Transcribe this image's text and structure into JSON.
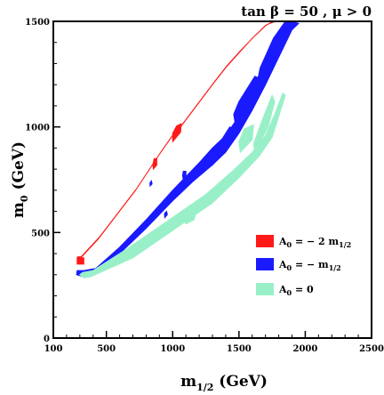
{
  "chart_data": {
    "type": "scatter",
    "title": "tan β = 50 ,  μ > 0",
    "xlabel": "m1/2 (GeV)",
    "ylabel": "m0 (GeV)",
    "xlim": [
      100,
      2500
    ],
    "ylim": [
      0,
      1500
    ],
    "x_ticks": [
      100,
      500,
      1000,
      1500,
      2000,
      2500
    ],
    "y_ticks": [
      0,
      500,
      1000,
      1500
    ],
    "grid": false,
    "legend_position": "right-center",
    "colors": {
      "red": "#ff1a1a",
      "blue": "#1a1aff",
      "green": "#99f0c8"
    },
    "series": [
      {
        "name": "A0 = − 2 m1/2",
        "color": "red",
        "outline": [
          [
            280,
            380
          ],
          [
            300,
            375
          ],
          [
            440,
            470
          ],
          [
            720,
            700
          ],
          [
            900,
            870
          ],
          [
            1000,
            960
          ],
          [
            1060,
            1000
          ],
          [
            1180,
            1100
          ],
          [
            1300,
            1200
          ],
          [
            1400,
            1280
          ],
          [
            1500,
            1350
          ],
          [
            1600,
            1420
          ],
          [
            1700,
            1480
          ],
          [
            1760,
            1500
          ],
          [
            1775,
            1500
          ],
          [
            1710,
            1485
          ],
          [
            1610,
            1425
          ],
          [
            1510,
            1360
          ],
          [
            1410,
            1290
          ],
          [
            1310,
            1210
          ],
          [
            1190,
            1110
          ],
          [
            1070,
            1010
          ],
          [
            1010,
            970
          ],
          [
            910,
            880
          ],
          [
            730,
            710
          ],
          [
            450,
            480
          ],
          [
            310,
            385
          ],
          [
            285,
            385
          ]
        ],
        "blobs": [
          {
            "outline": [
              [
                280,
                350
              ],
              [
                330,
                350
              ],
              [
                330,
                380
              ],
              [
                280,
                380
              ]
            ]
          },
          {
            "outline": [
              [
                1000,
                930
              ],
              [
                1060,
                975
              ],
              [
                1065,
                1015
              ],
              [
                1030,
                1005
              ],
              [
                1000,
                970
              ]
            ]
          },
          {
            "outline": [
              [
                855,
                800
              ],
              [
                880,
                820
              ],
              [
                880,
                850
              ],
              [
                860,
                850
              ],
              [
                850,
                820
              ]
            ]
          }
        ]
      },
      {
        "name": "A0 = − m1/2",
        "color": "blue",
        "outline": [
          [
            275,
            300
          ],
          [
            330,
            290
          ],
          [
            390,
            300
          ],
          [
            600,
            400
          ],
          [
            800,
            520
          ],
          [
            1000,
            650
          ],
          [
            1150,
            740
          ],
          [
            1300,
            820
          ],
          [
            1400,
            880
          ],
          [
            1500,
            970
          ],
          [
            1600,
            1080
          ],
          [
            1700,
            1200
          ],
          [
            1800,
            1330
          ],
          [
            1900,
            1460
          ],
          [
            1950,
            1490
          ],
          [
            1900,
            1500
          ],
          [
            1800,
            1420
          ],
          [
            1750,
            1380
          ],
          [
            1700,
            1300
          ],
          [
            1600,
            1170
          ],
          [
            1500,
            1050
          ],
          [
            1400,
            960
          ],
          [
            1300,
            900
          ],
          [
            1200,
            830
          ],
          [
            1000,
            700
          ],
          [
            800,
            560
          ],
          [
            600,
            430
          ],
          [
            420,
            330
          ],
          [
            330,
            320
          ],
          [
            280,
            320
          ]
        ],
        "blobs": [
          {
            "outline": [
              [
                1300,
                820
              ],
              [
                1440,
                920
              ],
              [
                1470,
                990
              ],
              [
                1430,
                1000
              ],
              [
                1360,
                930
              ],
              [
                1300,
                860
              ]
            ]
          },
          {
            "outline": [
              [
                1470,
                1020
              ],
              [
                1620,
                1170
              ],
              [
                1660,
                1230
              ],
              [
                1620,
                1240
              ],
              [
                1500,
                1120
              ],
              [
                1460,
                1060
              ]
            ]
          },
          {
            "outline": [
              [
                1620,
                1160
              ],
              [
                1800,
                1350
              ],
              [
                1870,
                1420
              ],
              [
                1890,
                1490
              ],
              [
                1920,
                1500
              ],
              [
                1850,
                1500
              ],
              [
                1760,
                1420
              ],
              [
                1660,
                1280
              ]
            ]
          },
          {
            "outline": [
              [
                1080,
                750
              ],
              [
                1100,
                770
              ],
              [
                1100,
                790
              ],
              [
                1080,
                790
              ],
              [
                1075,
                770
              ]
            ]
          },
          {
            "outline": [
              [
                940,
                570
              ],
              [
                960,
                585
              ],
              [
                955,
                600
              ],
              [
                938,
                590
              ]
            ]
          },
          {
            "outline": [
              [
                830,
                720
              ],
              [
                845,
                730
              ],
              [
                840,
                745
              ],
              [
                828,
                735
              ]
            ]
          }
        ]
      },
      {
        "name": "A0 = 0",
        "color": "green",
        "outline": [
          [
            300,
            300
          ],
          [
            330,
            285
          ],
          [
            380,
            290
          ],
          [
            700,
            380
          ],
          [
            1000,
            510
          ],
          [
            1300,
            640
          ],
          [
            1500,
            760
          ],
          [
            1650,
            860
          ],
          [
            1750,
            950
          ],
          [
            1800,
            1050
          ],
          [
            1850,
            1150
          ],
          [
            1830,
            1160
          ],
          [
            1770,
            1060
          ],
          [
            1700,
            960
          ],
          [
            1600,
            880
          ],
          [
            1450,
            790
          ],
          [
            1250,
            680
          ],
          [
            950,
            550
          ],
          [
            650,
            420
          ],
          [
            400,
            320
          ],
          [
            320,
            310
          ]
        ],
        "blobs": [
          {
            "outline": [
              [
                1100,
                540
              ],
              [
                1160,
                560
              ],
              [
                1175,
                590
              ],
              [
                1130,
                600
              ],
              [
                1080,
                570
              ]
            ]
          },
          {
            "outline": [
              [
                1620,
                880
              ],
              [
                1720,
                1000
              ],
              [
                1770,
                1120
              ],
              [
                1750,
                1150
              ],
              [
                1680,
                1040
              ],
              [
                1610,
                920
              ]
            ]
          },
          {
            "outline": [
              [
                1510,
                880
              ],
              [
                1600,
                940
              ],
              [
                1610,
                1010
              ],
              [
                1540,
                990
              ],
              [
                1500,
                930
              ]
            ]
          }
        ]
      }
    ]
  }
}
